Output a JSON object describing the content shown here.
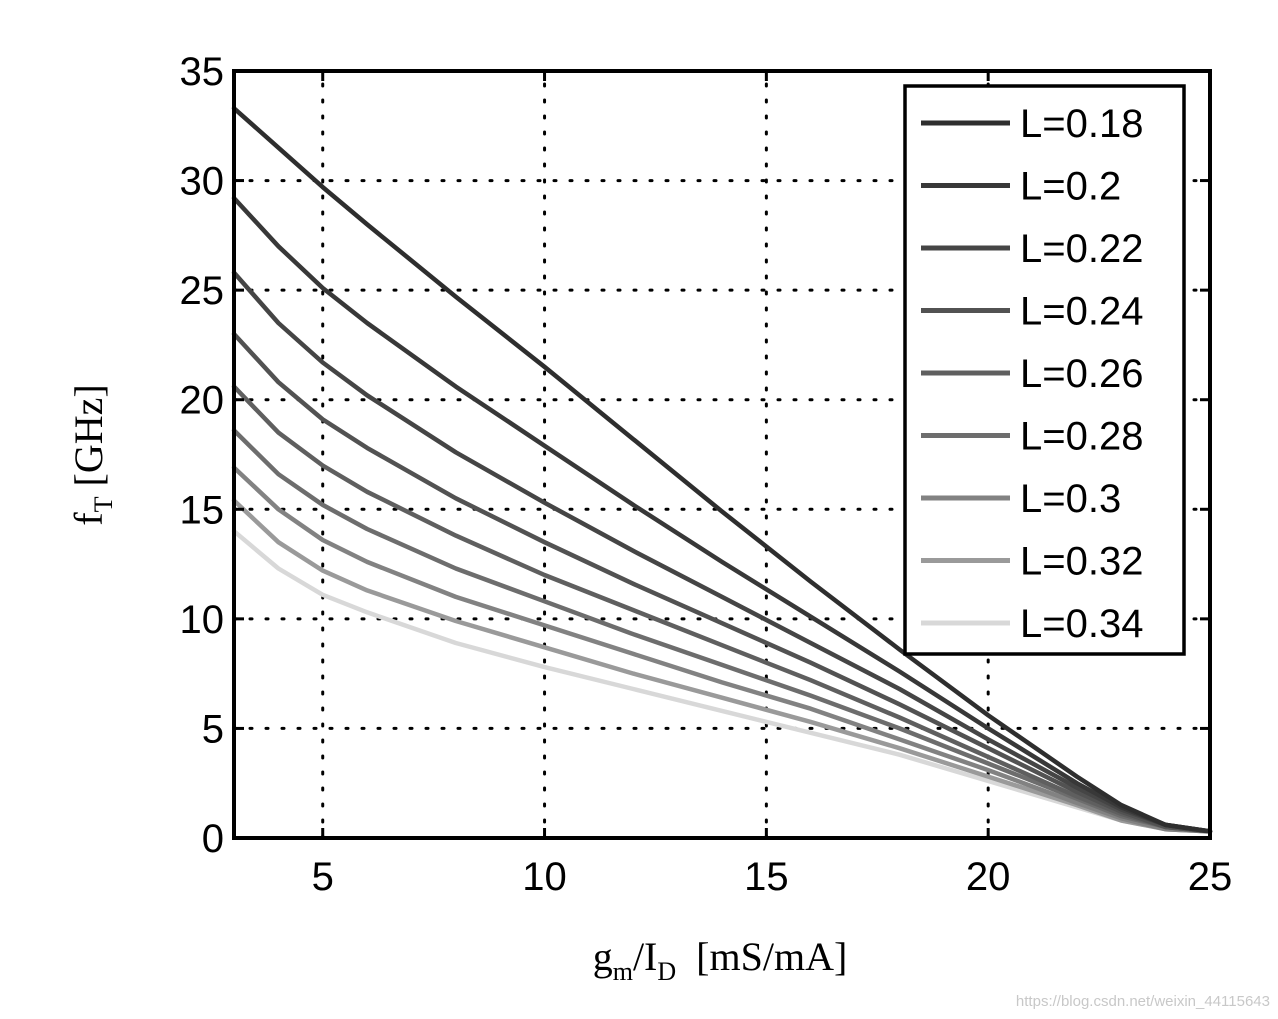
{
  "chart_data": {
    "type": "line",
    "xlabel": {
      "base": "g",
      "sub1": "m",
      "mid": "/I",
      "sub2": "D",
      "unit": "  [mS/mA]"
    },
    "ylabel": {
      "base": "f",
      "sub": "T",
      "unit": " [GHz]"
    },
    "xlim": [
      3,
      25
    ],
    "ylim": [
      0,
      35
    ],
    "xticks": [
      5,
      10,
      15,
      20,
      25
    ],
    "yticks": [
      0,
      5,
      10,
      15,
      20,
      25,
      30,
      35
    ],
    "grid": true,
    "legend_position": "top-right",
    "x": [
      3,
      4,
      5,
      6,
      8,
      10,
      12,
      14,
      16,
      18,
      20,
      22,
      23,
      24,
      25
    ],
    "series": [
      {
        "name": "L=0.18",
        "color": "#2e2e2e",
        "values": [
          33.3,
          31.5,
          29.7,
          28.0,
          24.7,
          21.5,
          18.2,
          14.9,
          11.7,
          8.6,
          5.6,
          2.8,
          1.5,
          0.6,
          0.3
        ]
      },
      {
        "name": "L=0.2",
        "color": "#383838",
        "values": [
          29.2,
          27.0,
          25.1,
          23.5,
          20.6,
          17.9,
          15.2,
          12.6,
          10.1,
          7.6,
          5.0,
          2.5,
          1.4,
          0.6,
          0.3
        ]
      },
      {
        "name": "L=0.22",
        "color": "#454545",
        "values": [
          25.8,
          23.5,
          21.7,
          20.2,
          17.6,
          15.3,
          13.1,
          11.0,
          8.9,
          6.8,
          4.5,
          2.3,
          1.3,
          0.6,
          0.3
        ]
      },
      {
        "name": "L=0.24",
        "color": "#525252",
        "values": [
          23.0,
          20.8,
          19.1,
          17.8,
          15.5,
          13.5,
          11.6,
          9.8,
          8.0,
          6.1,
          4.1,
          2.1,
          1.2,
          0.5,
          0.3
        ]
      },
      {
        "name": "L=0.26",
        "color": "#5f5f5f",
        "values": [
          20.6,
          18.5,
          17.0,
          15.8,
          13.8,
          12.0,
          10.4,
          8.8,
          7.2,
          5.5,
          3.7,
          1.9,
          1.1,
          0.5,
          0.3
        ]
      },
      {
        "name": "L=0.28",
        "color": "#6d6d6d",
        "values": [
          18.6,
          16.6,
          15.2,
          14.1,
          12.3,
          10.8,
          9.3,
          7.9,
          6.5,
          5.0,
          3.4,
          1.8,
          1.0,
          0.5,
          0.3
        ]
      },
      {
        "name": "L=0.3",
        "color": "#828282",
        "values": [
          16.9,
          15.0,
          13.6,
          12.6,
          11.0,
          9.7,
          8.4,
          7.1,
          5.9,
          4.5,
          3.1,
          1.6,
          0.9,
          0.4,
          0.3
        ]
      },
      {
        "name": "L=0.32",
        "color": "#9a9a9a",
        "values": [
          15.4,
          13.5,
          12.2,
          11.3,
          9.9,
          8.7,
          7.5,
          6.4,
          5.3,
          4.1,
          2.8,
          1.5,
          0.8,
          0.4,
          0.3
        ]
      },
      {
        "name": "L=0.34",
        "color": "#d8d8d8",
        "values": [
          14.0,
          12.3,
          11.1,
          10.3,
          8.9,
          7.8,
          6.8,
          5.8,
          4.8,
          3.8,
          2.6,
          1.4,
          0.8,
          0.4,
          0.3
        ]
      }
    ]
  },
  "watermark": "https://blog.csdn.net/weixin_44115643"
}
